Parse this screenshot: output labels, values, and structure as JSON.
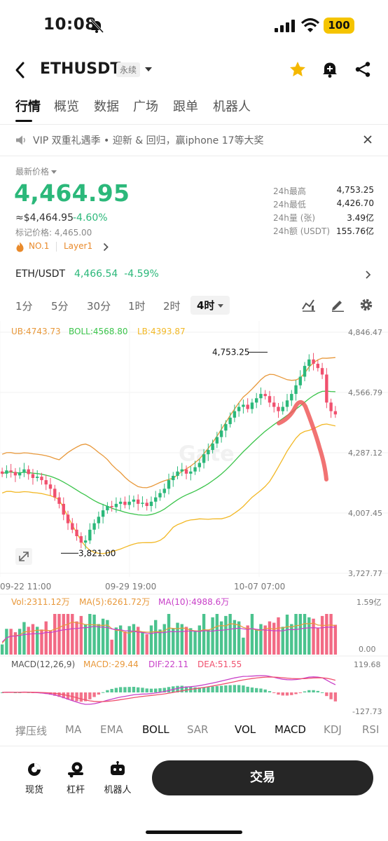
{
  "status_bar": {
    "time": "10:08",
    "battery": "100"
  },
  "header": {
    "symbol": "ETHUSDT",
    "contract_type": "永续"
  },
  "tabs": [
    {
      "label": "行情"
    },
    {
      "label": "概览"
    },
    {
      "label": "数据"
    },
    {
      "label": "广场"
    },
    {
      "label": "跟单"
    },
    {
      "label": "机器人"
    }
  ],
  "announcement": {
    "text": "VIP 双重礼遇季 • 迎新 & 回归，赢iphone 17等大奖"
  },
  "price": {
    "label": "最新价格",
    "last": "4,464.95",
    "usd": "≈$4,464.95",
    "change": "-4.60%",
    "mark_price": "标记价格: 4,465.00",
    "rank_badge": "NO.1",
    "category_badge": "Layer1"
  },
  "stats": [
    {
      "label": "24h最高",
      "value": "4,753.25"
    },
    {
      "label": "24h最低",
      "value": "4,426.70"
    },
    {
      "label": "24h量 (张)",
      "value": "3.49亿"
    },
    {
      "label": "24h额 (USDT)",
      "value": "155.76亿"
    }
  ],
  "spot": {
    "pair": "ETH/USDT",
    "price": "4,466.54",
    "change": "-4.59%"
  },
  "intervals": [
    {
      "label": "1分"
    },
    {
      "label": "5分"
    },
    {
      "label": "30分"
    },
    {
      "label": "1时"
    },
    {
      "label": "2时"
    },
    {
      "label": "4时"
    }
  ],
  "chart_data": {
    "type": "candlestick",
    "boll_legend": {
      "ub": "UB:4743.73",
      "boll": "BOLL:4568.80",
      "lb": "LB:4393.87"
    },
    "y_ticks": [
      "4,846.47",
      "4,566.79",
      "4,287.12",
      "4,007.45",
      "3,727.77"
    ],
    "x_ticks": [
      "09-22 11:00",
      "09-29 19:00",
      "10-07 07:00"
    ],
    "ylim": [
      3727.77,
      4846.47
    ],
    "high_label": "4,753.25",
    "low_label": "3,821.00",
    "watermark": "Gate",
    "close_series": [
      4190,
      4205,
      4198,
      4182,
      4195,
      4210,
      4188,
      4170,
      4176,
      4160,
      4140,
      4120,
      4080,
      4050,
      4000,
      3960,
      3930,
      3900,
      3870,
      3880,
      3930,
      3960,
      3990,
      4020,
      4040,
      4035,
      4050,
      4060,
      4045,
      4060,
      4070,
      4050,
      4055,
      4040,
      4060,
      4080,
      4100,
      4120,
      4160,
      4180,
      4200,
      4210,
      4190,
      4200,
      4220,
      4240,
      4280,
      4300,
      4330,
      4360,
      4390,
      4420,
      4450,
      4480,
      4500,
      4510,
      4490,
      4520,
      4540,
      4560,
      4550,
      4520,
      4500,
      4480,
      4500,
      4530,
      4560,
      4600,
      4640,
      4690,
      4720,
      4700,
      4680,
      4650,
      4520,
      4480,
      4465
    ],
    "volume": {
      "vol": "Vol:2311.12万",
      "ma5": "MA(5):6261.72万",
      "ma10": "MA(10):4988.6万",
      "y_ticks": [
        "1.59亿",
        "0.00"
      ]
    },
    "macd": {
      "label": "MACD(12,26,9)",
      "macd": "MACD:-29.44",
      "dif": "DIF:22.11",
      "dea": "DEA:51.55",
      "y_ticks": [
        "119.68",
        "-127.73"
      ]
    },
    "colors": {
      "up": "#2bb87a",
      "down": "#f0506e",
      "ub": "#e8983a",
      "boll": "#3bc44b",
      "lb": "#f2b826",
      "dif": "#c840c8",
      "dea": "#f0506e",
      "annotation": "#ef5b5b"
    }
  },
  "indicators": [
    {
      "label": "撑压线",
      "on": false
    },
    {
      "label": "MA",
      "on": false
    },
    {
      "label": "EMA",
      "on": false
    },
    {
      "label": "BOLL",
      "on": true
    },
    {
      "label": "SAR",
      "on": false
    },
    {
      "label": "VOL",
      "on": true
    },
    {
      "label": "MACD",
      "on": true
    },
    {
      "label": "KDJ",
      "on": false
    },
    {
      "label": "RSI",
      "on": false
    }
  ],
  "bottom_nav": {
    "spot": "现货",
    "leverage": "杠杆",
    "bot": "机器人",
    "trade": "交易"
  }
}
